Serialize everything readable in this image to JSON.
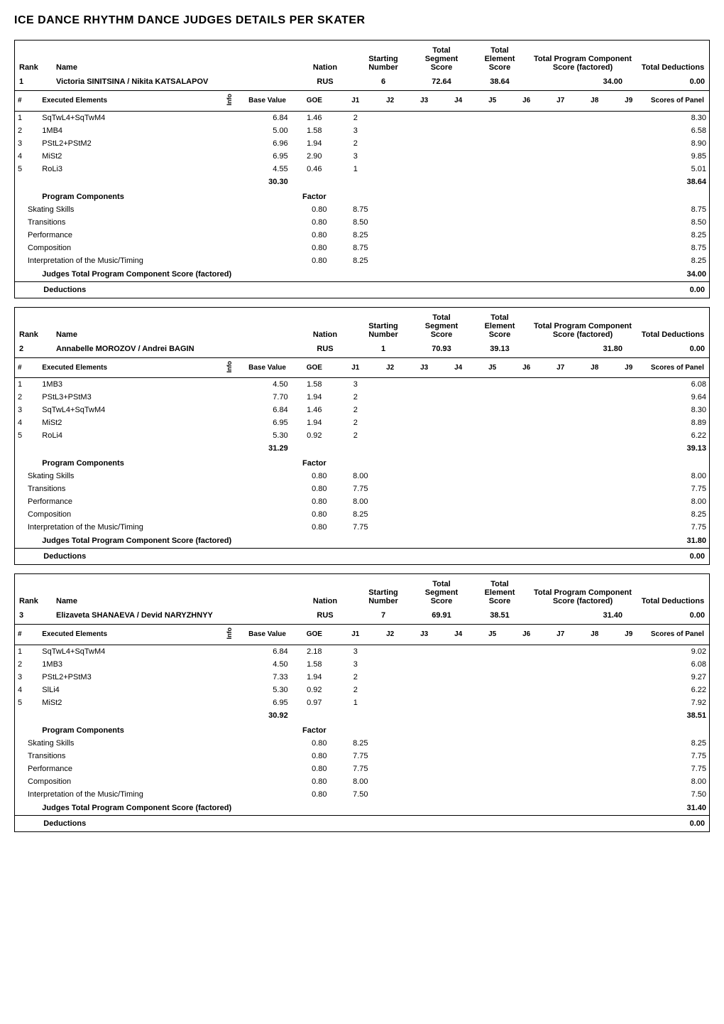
{
  "page_title": "ICE DANCE RHYTHM DANCE        JUDGES DETAILS PER SKATER",
  "header_labels": {
    "rank": "Rank",
    "name": "Name",
    "nation": "Nation",
    "starting_number": "Starting Number",
    "total_segment": "Total Segment Score",
    "total_element": "Total Element Score",
    "total_program": "Total Program Component Score (factored)",
    "total_deductions": "Total Deductions"
  },
  "element_header": {
    "hash": "#",
    "executed": "Executed Elements",
    "info": "Info",
    "base": "Base Value",
    "goe": "GOE",
    "J": [
      "J1",
      "J2",
      "J3",
      "J4",
      "J5",
      "J6",
      "J7",
      "J8",
      "J9"
    ],
    "scores_of_panel": "Scores of Panel"
  },
  "pc_header": "Program Components",
  "factor_label": "Factor",
  "jtpcs_label": "Judges Total Program Component Score (factored)",
  "deductions_label": "Deductions",
  "skaters": [
    {
      "rank": "1",
      "name": "Victoria SINITSINA / Nikita KATSALAPOV",
      "nation": "RUS",
      "starting_number": "6",
      "total_segment": "72.64",
      "total_element": "38.64",
      "total_program": "34.00",
      "total_deductions": "0.00",
      "elements": [
        {
          "n": "1",
          "name": "SqTwL4+SqTwM4",
          "base": "6.84",
          "goe": "1.46",
          "j": [
            "2",
            "",
            "",
            "",
            "",
            "",
            "",
            "",
            ""
          ],
          "sop": "8.30"
        },
        {
          "n": "2",
          "name": "1MB4",
          "base": "5.00",
          "goe": "1.58",
          "j": [
            "3",
            "",
            "",
            "",
            "",
            "",
            "",
            "",
            ""
          ],
          "sop": "6.58"
        },
        {
          "n": "3",
          "name": "PStL2+PStM2",
          "base": "6.96",
          "goe": "1.94",
          "j": [
            "2",
            "",
            "",
            "",
            "",
            "",
            "",
            "",
            ""
          ],
          "sop": "8.90"
        },
        {
          "n": "4",
          "name": "MiSt2",
          "base": "6.95",
          "goe": "2.90",
          "j": [
            "3",
            "",
            "",
            "",
            "",
            "",
            "",
            "",
            ""
          ],
          "sop": "9.85"
        },
        {
          "n": "5",
          "name": "RoLi3",
          "base": "4.55",
          "goe": "0.46",
          "j": [
            "1",
            "",
            "",
            "",
            "",
            "",
            "",
            "",
            ""
          ],
          "sop": "5.01"
        }
      ],
      "base_total": "30.30",
      "sop_total": "38.64",
      "components": [
        {
          "name": "Skating Skills",
          "factor": "0.80",
          "j1": "8.75",
          "score": "8.75"
        },
        {
          "name": "Transitions",
          "factor": "0.80",
          "j1": "8.50",
          "score": "8.50"
        },
        {
          "name": "Performance",
          "factor": "0.80",
          "j1": "8.25",
          "score": "8.25"
        },
        {
          "name": "Composition",
          "factor": "0.80",
          "j1": "8.75",
          "score": "8.75"
        },
        {
          "name": "Interpretation of the Music/Timing",
          "factor": "0.80",
          "j1": "8.25",
          "score": "8.25"
        }
      ],
      "jtpcs": "34.00",
      "deductions_value": "0.00"
    },
    {
      "rank": "2",
      "name": "Annabelle MOROZOV / Andrei BAGIN",
      "nation": "RUS",
      "starting_number": "1",
      "total_segment": "70.93",
      "total_element": "39.13",
      "total_program": "31.80",
      "total_deductions": "0.00",
      "elements": [
        {
          "n": "1",
          "name": "1MB3",
          "base": "4.50",
          "goe": "1.58",
          "j": [
            "3",
            "",
            "",
            "",
            "",
            "",
            "",
            "",
            ""
          ],
          "sop": "6.08"
        },
        {
          "n": "2",
          "name": "PStL3+PStM3",
          "base": "7.70",
          "goe": "1.94",
          "j": [
            "2",
            "",
            "",
            "",
            "",
            "",
            "",
            "",
            ""
          ],
          "sop": "9.64"
        },
        {
          "n": "3",
          "name": "SqTwL4+SqTwM4",
          "base": "6.84",
          "goe": "1.46",
          "j": [
            "2",
            "",
            "",
            "",
            "",
            "",
            "",
            "",
            ""
          ],
          "sop": "8.30"
        },
        {
          "n": "4",
          "name": "MiSt2",
          "base": "6.95",
          "goe": "1.94",
          "j": [
            "2",
            "",
            "",
            "",
            "",
            "",
            "",
            "",
            ""
          ],
          "sop": "8.89"
        },
        {
          "n": "5",
          "name": "RoLi4",
          "base": "5.30",
          "goe": "0.92",
          "j": [
            "2",
            "",
            "",
            "",
            "",
            "",
            "",
            "",
            ""
          ],
          "sop": "6.22"
        }
      ],
      "base_total": "31.29",
      "sop_total": "39.13",
      "components": [
        {
          "name": "Skating Skills",
          "factor": "0.80",
          "j1": "8.00",
          "score": "8.00"
        },
        {
          "name": "Transitions",
          "factor": "0.80",
          "j1": "7.75",
          "score": "7.75"
        },
        {
          "name": "Performance",
          "factor": "0.80",
          "j1": "8.00",
          "score": "8.00"
        },
        {
          "name": "Composition",
          "factor": "0.80",
          "j1": "8.25",
          "score": "8.25"
        },
        {
          "name": "Interpretation of the Music/Timing",
          "factor": "0.80",
          "j1": "7.75",
          "score": "7.75"
        }
      ],
      "jtpcs": "31.80",
      "deductions_value": "0.00"
    },
    {
      "rank": "3",
      "name": "Elizaveta SHANAEVA / Devid NARYZHNYY",
      "nation": "RUS",
      "starting_number": "7",
      "total_segment": "69.91",
      "total_element": "38.51",
      "total_program": "31.40",
      "total_deductions": "0.00",
      "elements": [
        {
          "n": "1",
          "name": "SqTwL4+SqTwM4",
          "base": "6.84",
          "goe": "2.18",
          "j": [
            "3",
            "",
            "",
            "",
            "",
            "",
            "",
            "",
            ""
          ],
          "sop": "9.02"
        },
        {
          "n": "2",
          "name": "1MB3",
          "base": "4.50",
          "goe": "1.58",
          "j": [
            "3",
            "",
            "",
            "",
            "",
            "",
            "",
            "",
            ""
          ],
          "sop": "6.08"
        },
        {
          "n": "3",
          "name": "PStL2+PStM3",
          "base": "7.33",
          "goe": "1.94",
          "j": [
            "2",
            "",
            "",
            "",
            "",
            "",
            "",
            "",
            ""
          ],
          "sop": "9.27"
        },
        {
          "n": "4",
          "name": "SlLi4",
          "base": "5.30",
          "goe": "0.92",
          "j": [
            "2",
            "",
            "",
            "",
            "",
            "",
            "",
            "",
            ""
          ],
          "sop": "6.22"
        },
        {
          "n": "5",
          "name": "MiSt2",
          "base": "6.95",
          "goe": "0.97",
          "j": [
            "1",
            "",
            "",
            "",
            "",
            "",
            "",
            "",
            ""
          ],
          "sop": "7.92"
        }
      ],
      "base_total": "30.92",
      "sop_total": "38.51",
      "components": [
        {
          "name": "Skating Skills",
          "factor": "0.80",
          "j1": "8.25",
          "score": "8.25"
        },
        {
          "name": "Transitions",
          "factor": "0.80",
          "j1": "7.75",
          "score": "7.75"
        },
        {
          "name": "Performance",
          "factor": "0.80",
          "j1": "7.75",
          "score": "7.75"
        },
        {
          "name": "Composition",
          "factor": "0.80",
          "j1": "8.00",
          "score": "8.00"
        },
        {
          "name": "Interpretation of the Music/Timing",
          "factor": "0.80",
          "j1": "7.50",
          "score": "7.50"
        }
      ],
      "jtpcs": "31.40",
      "deductions_value": "0.00"
    }
  ]
}
